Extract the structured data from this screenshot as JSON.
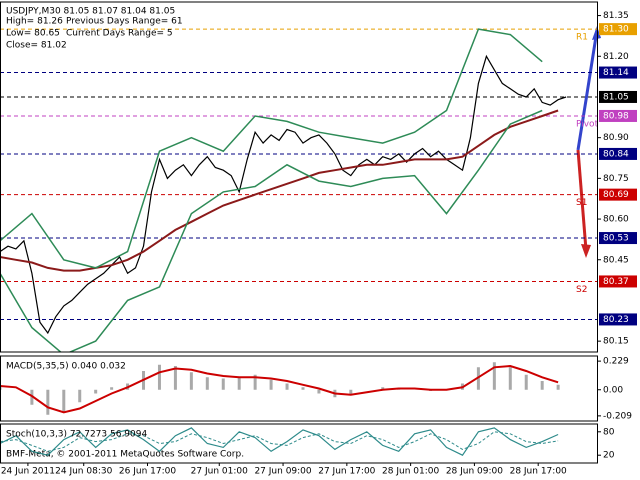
{
  "chart_data": [
    {
      "type": "price",
      "title": "USDJPY,M30  81.05 81.07 81.04 81.05",
      "info": [
        "High= 81.26",
        "Previous Days Range= 61",
        "Low= 80.65",
        "Current Days Range= 5",
        "Close= 81.02"
      ],
      "footer": "BMF-Meta, © 2001-2011 MetaQuotes Software Corp.",
      "xlim": [
        0,
        75
      ],
      "xticks": [
        {
          "value": 3.5,
          "label": "24 Jun 2011"
        },
        {
          "value": 10.5,
          "label": "24 Jun 08:30"
        },
        {
          "value": 18.5,
          "label": "26 Jun 17:00"
        },
        {
          "value": 27.5,
          "label": "27 Jun 01:00"
        },
        {
          "value": 35.5,
          "label": "27 Jun 09:00"
        },
        {
          "value": 43.5,
          "label": "27 Jun 17:00"
        },
        {
          "value": 51.5,
          "label": "28 Jun 01:00"
        },
        {
          "value": 59.5,
          "label": "28 Jun 09:00"
        },
        {
          "value": 67.5,
          "label": "28 Jun 17:00"
        }
      ],
      "ylim": [
        80.11,
        81.4
      ],
      "yticks": [
        81.35,
        {
          "value": 81.2,
          "label": "81.20"
        },
        {
          "value": 80.9,
          "label": "80.90"
        },
        80.75,
        {
          "value": 80.6,
          "label": "80.60"
        },
        80.45,
        80.15
      ],
      "levels": [
        {
          "value": 81.3,
          "label": "81.30",
          "color": "#e8a000",
          "tag": "R1"
        },
        {
          "value": 81.14,
          "color": "#000080"
        },
        {
          "value": 81.05,
          "color": "#000000"
        },
        {
          "value": 80.98,
          "color": "#c040c0",
          "tag": "Pivot"
        },
        {
          "value": 80.84,
          "color": "#000080"
        },
        {
          "value": 80.69,
          "color": "#cc0000",
          "tag": "S1"
        },
        {
          "value": 80.53,
          "color": "#000080"
        },
        {
          "value": 80.37,
          "color": "#cc0000",
          "tag": "S2"
        },
        {
          "value": 80.23,
          "color": "#000080"
        }
      ],
      "series": [
        {
          "kind": "line",
          "color": "#000000",
          "width": 1.2,
          "x": [
            0,
            1,
            2,
            3,
            4,
            5,
            6,
            7,
            8,
            9,
            10,
            11,
            12,
            13,
            14,
            15,
            16,
            17,
            18,
            19,
            20,
            21,
            22,
            23,
            24,
            25,
            26,
            27,
            28,
            29,
            30,
            31,
            32,
            33,
            34,
            35,
            36,
            37,
            38,
            39,
            40,
            41,
            42,
            43,
            44,
            45,
            46,
            47,
            48,
            49,
            50,
            51,
            52,
            53,
            54,
            55,
            56,
            57,
            58,
            59,
            60,
            61,
            62,
            63,
            64,
            65,
            66,
            67,
            68,
            69,
            70,
            71
          ],
          "values": [
            80.48,
            80.5,
            80.49,
            80.52,
            80.4,
            80.22,
            80.18,
            80.24,
            80.28,
            80.3,
            80.33,
            80.36,
            80.38,
            80.4,
            80.43,
            80.46,
            80.4,
            80.42,
            80.5,
            80.7,
            80.82,
            80.75,
            80.78,
            80.8,
            80.76,
            80.8,
            80.83,
            80.79,
            80.78,
            80.76,
            80.7,
            80.82,
            80.92,
            80.88,
            80.91,
            80.89,
            80.93,
            80.92,
            80.88,
            80.9,
            80.91,
            80.88,
            80.84,
            80.78,
            80.76,
            80.8,
            80.82,
            80.8,
            80.83,
            80.82,
            80.84,
            80.81,
            80.84,
            80.86,
            80.83,
            80.85,
            80.82,
            80.8,
            80.78,
            80.9,
            81.1,
            81.2,
            81.15,
            81.1,
            81.08,
            81.06,
            81.05,
            81.08,
            81.03,
            81.02,
            81.04,
            81.05
          ]
        },
        {
          "kind": "line",
          "color": "#8b1a1a",
          "width": 2,
          "x": [
            0,
            2,
            4,
            6,
            8,
            10,
            12,
            14,
            16,
            18,
            20,
            22,
            24,
            26,
            28,
            30,
            32,
            34,
            36,
            38,
            40,
            42,
            44,
            46,
            48,
            50,
            52,
            54,
            56,
            58,
            60,
            62,
            64,
            66,
            68,
            70
          ],
          "values": [
            80.46,
            80.45,
            80.44,
            80.42,
            80.41,
            80.41,
            80.42,
            80.43,
            80.45,
            80.48,
            80.52,
            80.56,
            80.59,
            80.62,
            80.65,
            80.67,
            80.69,
            80.71,
            80.73,
            80.75,
            80.77,
            80.78,
            80.79,
            80.8,
            80.8,
            80.81,
            80.82,
            80.82,
            80.82,
            80.83,
            80.87,
            80.91,
            80.94,
            80.96,
            80.98,
            81.0
          ]
        },
        {
          "kind": "line",
          "color": "#2e8b57",
          "width": 1.5,
          "x": [
            0,
            4,
            8,
            12,
            16,
            20,
            24,
            28,
            32,
            36,
            40,
            44,
            48,
            52,
            56,
            60,
            64,
            68
          ],
          "values": [
            80.52,
            80.62,
            80.45,
            80.42,
            80.48,
            80.85,
            80.9,
            80.85,
            80.98,
            80.96,
            80.92,
            80.9,
            80.88,
            80.92,
            81.0,
            81.3,
            81.28,
            81.18
          ]
        },
        {
          "kind": "line",
          "color": "#2e8b57",
          "width": 1.5,
          "x": [
            0,
            4,
            8,
            12,
            16,
            20,
            24,
            28,
            32,
            36,
            40,
            44,
            48,
            52,
            56,
            60,
            64,
            68
          ],
          "values": [
            80.4,
            80.2,
            80.1,
            80.15,
            80.3,
            80.35,
            80.62,
            80.7,
            80.72,
            80.8,
            80.74,
            80.72,
            80.75,
            80.76,
            80.62,
            80.78,
            80.95,
            81.0
          ]
        }
      ]
    },
    {
      "type": "macd",
      "title": "MACD(5,35,5) 0.040 0.032",
      "ylim": [
        -0.25,
        0.27
      ],
      "yticks": [
        0.229,
        {
          "value": 0,
          "label": "0.00"
        },
        -0.209
      ],
      "series": [
        {
          "kind": "bar",
          "color": "#a9a9a9",
          "x": [
            0,
            2,
            4,
            6,
            8,
            10,
            12,
            14,
            16,
            18,
            20,
            22,
            24,
            26,
            28,
            30,
            32,
            34,
            36,
            38,
            40,
            42,
            44,
            46,
            48,
            50,
            52,
            54,
            56,
            58,
            60,
            62,
            64,
            66,
            68,
            70
          ],
          "values": [
            0.02,
            0,
            -0.12,
            -0.2,
            -0.18,
            -0.1,
            -0.03,
            0.02,
            0.05,
            0.15,
            0.2,
            0.19,
            0.14,
            0.1,
            0.09,
            0.1,
            0.12,
            0.08,
            0.05,
            0.02,
            -0.03,
            -0.06,
            -0.04,
            0,
            0.02,
            0.01,
            0,
            -0.01,
            0,
            0.05,
            0.18,
            0.22,
            0.18,
            0.12,
            0.07,
            0.04
          ]
        },
        {
          "kind": "line",
          "color": "#cc0000",
          "width": 2,
          "x": [
            0,
            2,
            4,
            6,
            8,
            10,
            12,
            14,
            16,
            18,
            20,
            22,
            24,
            26,
            28,
            30,
            32,
            34,
            36,
            38,
            40,
            42,
            44,
            46,
            48,
            50,
            52,
            54,
            56,
            58,
            60,
            62,
            64,
            66,
            68,
            70
          ],
          "values": [
            0.03,
            0.02,
            -0.05,
            -0.14,
            -0.18,
            -0.15,
            -0.09,
            -0.03,
            0.02,
            0.08,
            0.14,
            0.17,
            0.16,
            0.13,
            0.11,
            0.1,
            0.1,
            0.09,
            0.07,
            0.04,
            0.01,
            -0.03,
            -0.04,
            -0.02,
            0,
            0.01,
            0.01,
            0,
            0,
            0.02,
            0.1,
            0.18,
            0.19,
            0.15,
            0.1,
            0.06
          ]
        }
      ]
    },
    {
      "type": "stochastic",
      "title": "Stoch(10,3,3) 72.7273 56.9094",
      "ylim": [
        0,
        100
      ],
      "yticks": [
        80,
        20
      ],
      "series": [
        {
          "kind": "line",
          "color": "#2e8b8b",
          "width": 1.2,
          "x": [
            0,
            2,
            4,
            6,
            8,
            10,
            12,
            14,
            16,
            18,
            20,
            22,
            24,
            26,
            28,
            30,
            32,
            34,
            36,
            38,
            40,
            42,
            44,
            46,
            48,
            50,
            52,
            54,
            56,
            58,
            60,
            62,
            64,
            66,
            68,
            70
          ],
          "values": [
            50,
            70,
            30,
            20,
            60,
            80,
            40,
            75,
            85,
            60,
            30,
            70,
            90,
            50,
            40,
            80,
            65,
            30,
            55,
            85,
            70,
            35,
            60,
            80,
            45,
            30,
            75,
            85,
            40,
            20,
            80,
            90,
            60,
            40,
            55,
            73
          ]
        },
        {
          "kind": "line",
          "color": "#2e8b8b",
          "width": 1,
          "dash": true,
          "x": [
            0,
            2,
            4,
            6,
            8,
            10,
            12,
            14,
            16,
            18,
            20,
            22,
            24,
            26,
            28,
            30,
            32,
            34,
            36,
            38,
            40,
            42,
            44,
            46,
            48,
            50,
            52,
            54,
            56,
            58,
            60,
            62,
            64,
            66,
            68,
            70
          ],
          "values": [
            55,
            60,
            45,
            30,
            40,
            65,
            55,
            60,
            75,
            70,
            50,
            55,
            75,
            65,
            50,
            60,
            70,
            50,
            45,
            65,
            75,
            55,
            50,
            70,
            60,
            40,
            55,
            75,
            60,
            35,
            50,
            80,
            75,
            55,
            50,
            57
          ]
        }
      ]
    }
  ]
}
